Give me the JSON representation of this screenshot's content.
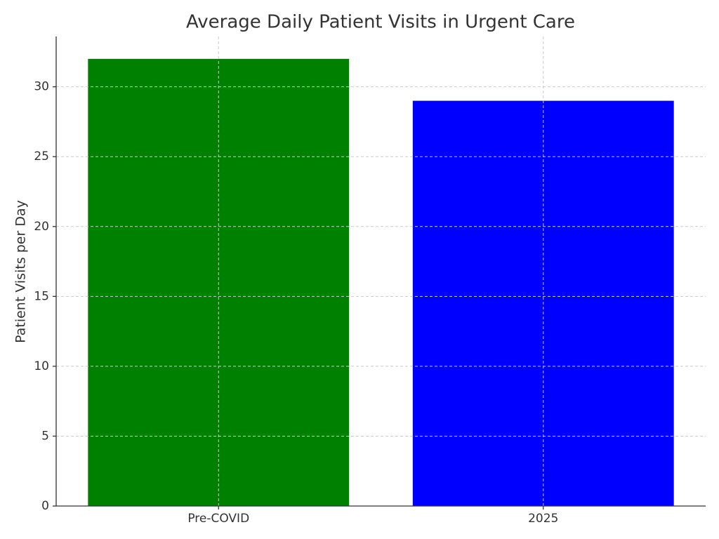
{
  "chart_data": {
    "type": "bar",
    "title": "Average Daily Patient Visits in Urgent Care",
    "y_label": "Patient Visits per Day",
    "categories": [
      "Pre-COVID",
      "2025"
    ],
    "values": [
      32,
      29
    ],
    "colors": [
      "#008000",
      "#0000ff"
    ],
    "ylim": [
      0,
      33.6
    ],
    "yticks": [
      0,
      5,
      10,
      15,
      20,
      25,
      30
    ],
    "grid": true
  }
}
